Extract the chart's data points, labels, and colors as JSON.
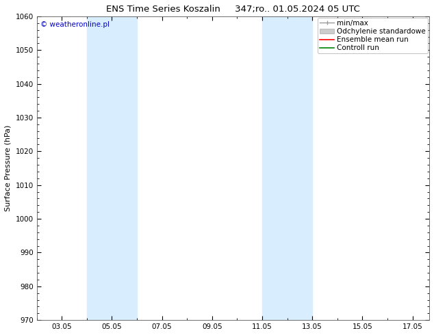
{
  "title": "ENS Time Series Koszalin     347;ro.. 01.05.2024 05 UTC",
  "ylabel": "Surface Pressure (hPa)",
  "ylim": [
    970,
    1060
  ],
  "yticks": [
    970,
    980,
    990,
    1000,
    1010,
    1020,
    1030,
    1040,
    1050,
    1060
  ],
  "xlim": [
    2.0,
    17.67
  ],
  "xtick_labels": [
    "03.05",
    "05.05",
    "07.05",
    "09.05",
    "11.05",
    "13.05",
    "15.05",
    "17.05"
  ],
  "xtick_positions": [
    3,
    5,
    7,
    9,
    11,
    13,
    15,
    17
  ],
  "shaded_bands": [
    {
      "x_start": 4.0,
      "x_end": 6.0,
      "color": "#d8eeff",
      "alpha": 1.0
    },
    {
      "x_start": 11.0,
      "x_end": 13.0,
      "color": "#d8eeff",
      "alpha": 1.0
    }
  ],
  "watermark": "© weatheronline.pl",
  "watermark_color": "#0000cc",
  "bg_color": "#ffffff",
  "plot_bg_color": "#ffffff",
  "title_fontsize": 9.5,
  "axis_label_fontsize": 8,
  "tick_fontsize": 7.5,
  "legend_fontsize": 7.5,
  "legend_minmax_color": "#999999",
  "legend_std_color": "#cccccc",
  "legend_ens_color": "#ff0000",
  "legend_ctrl_color": "#008000"
}
